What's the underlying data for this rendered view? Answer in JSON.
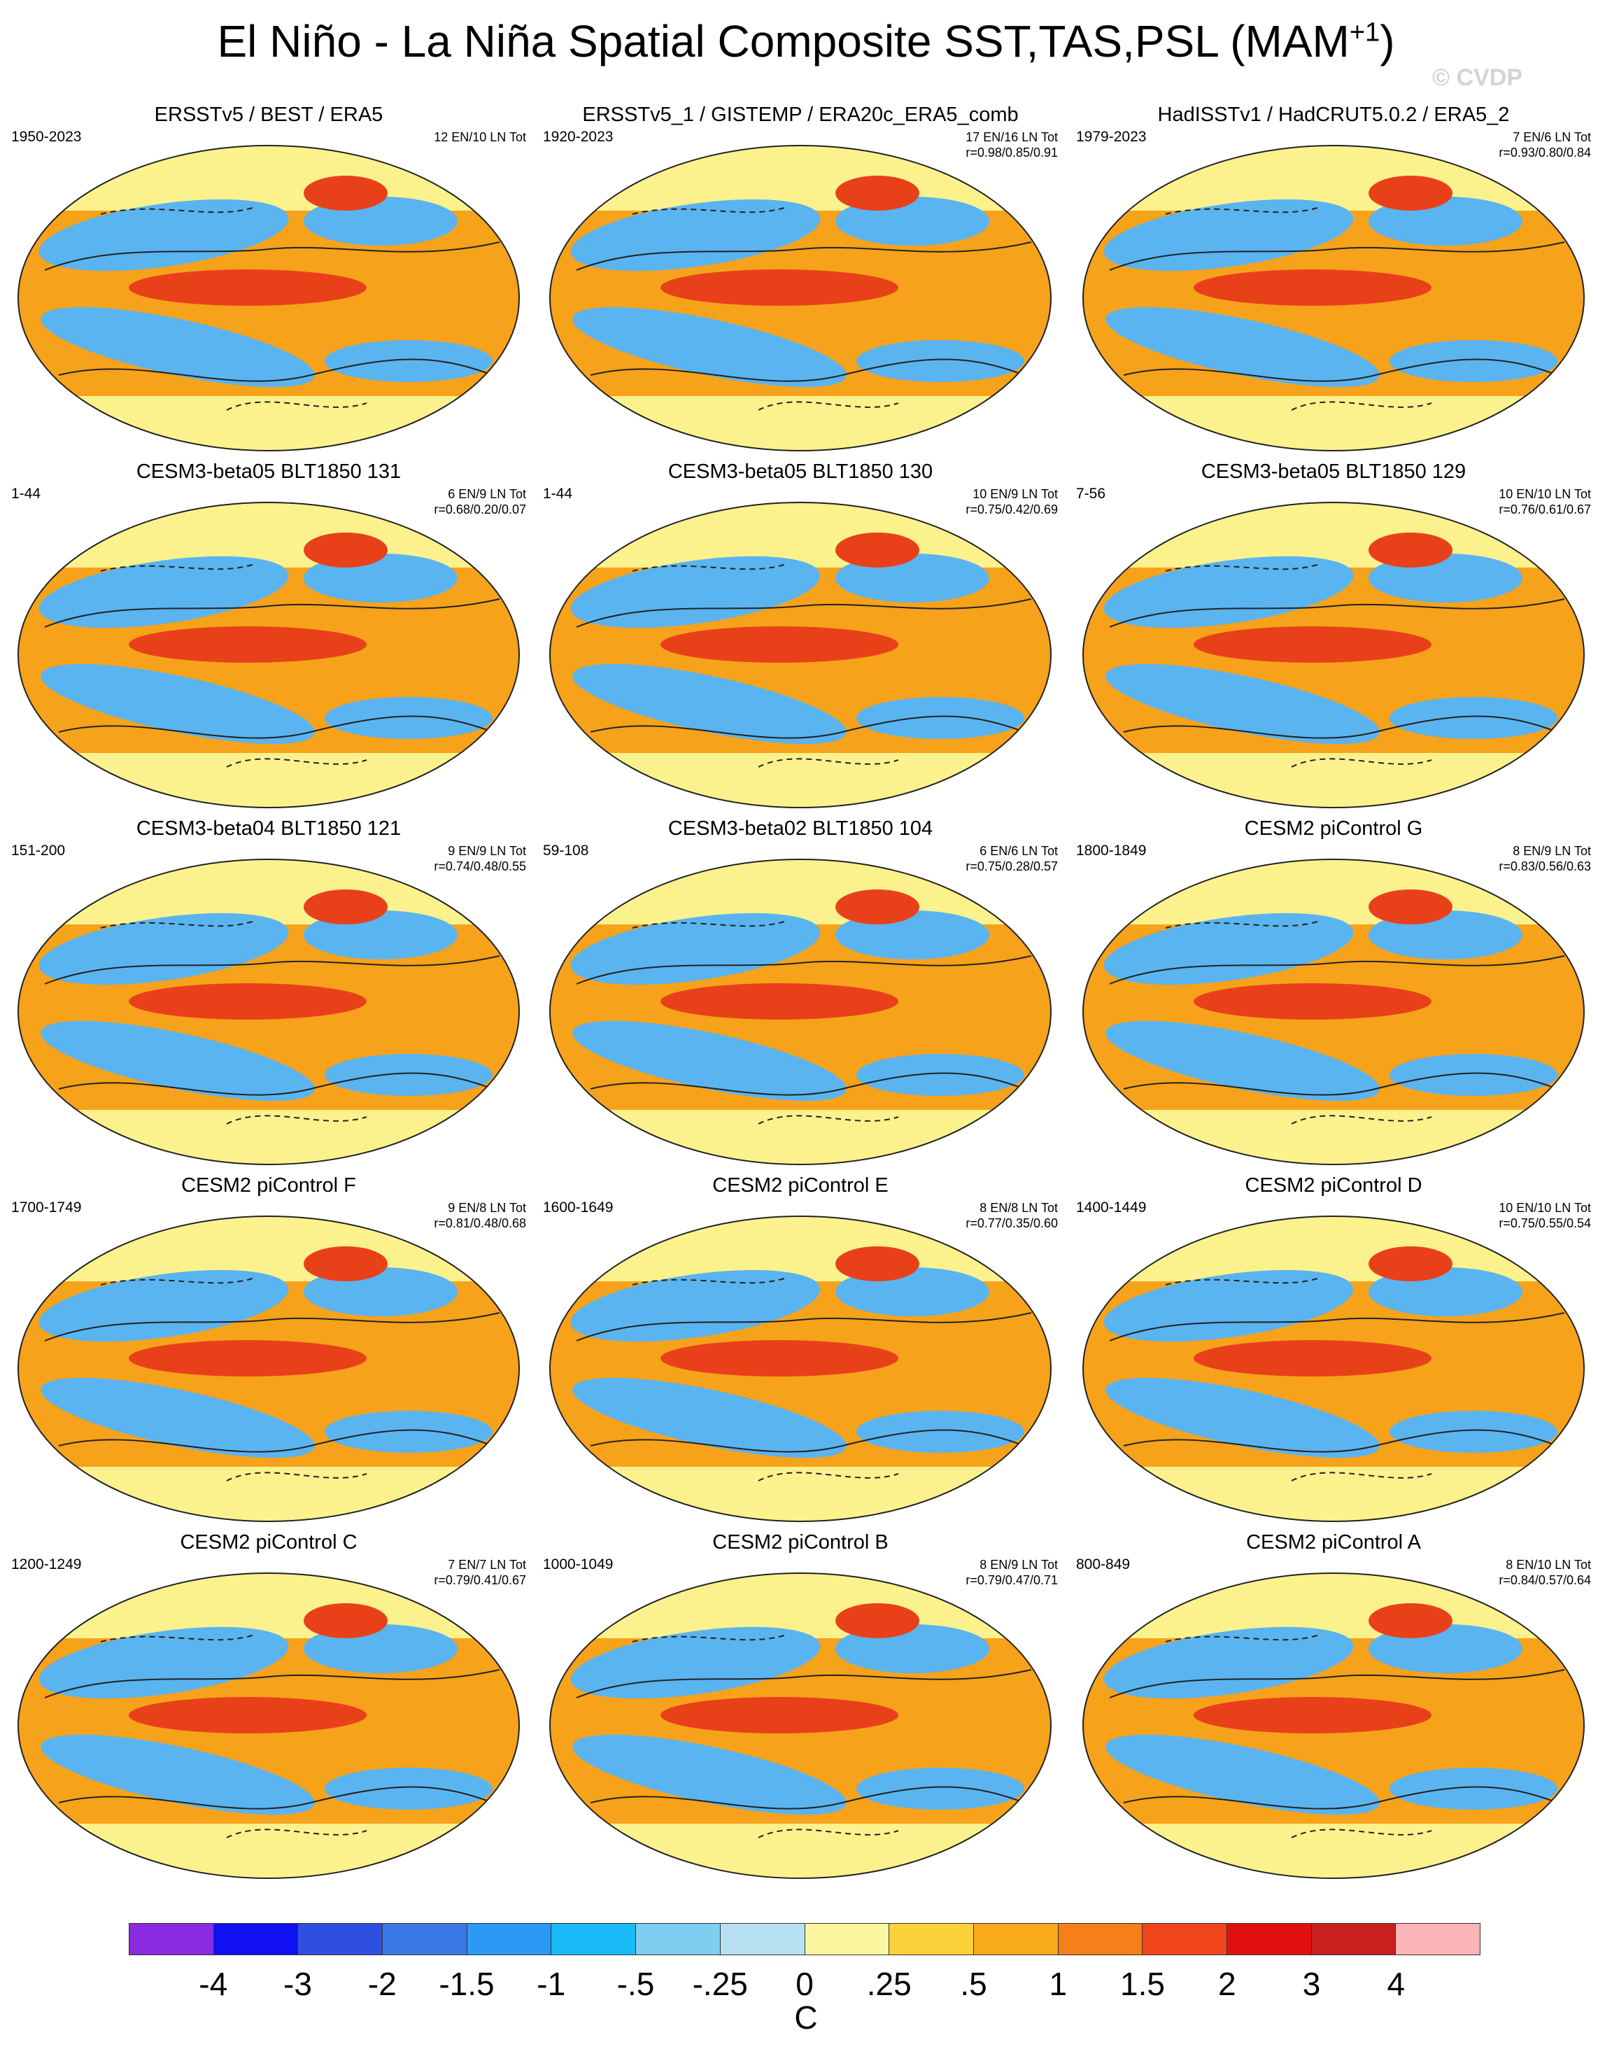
{
  "title": {
    "main": "El Niño - La Niña Spatial Composite SST,TAS,PSL (MAM",
    "sup": "+1",
    "close": ")"
  },
  "watermark": "© CVDP",
  "map_style": {
    "ocean_warm": "#f7a21b",
    "warm_strong": "#e8411a",
    "cool": "#5ab4f0",
    "neutral": "#fbf28e",
    "outline": "#222222"
  },
  "panels": [
    {
      "title": "ERSSTv5 / BEST / ERA5",
      "years": "1950-2023",
      "counts": "12 EN/10 LN Tot",
      "corr": ""
    },
    {
      "title": "ERSSTv5_1 / GISTEMP / ERA20c_ERA5_comb",
      "years": "1920-2023",
      "counts": "17 EN/16 LN Tot",
      "corr": "r=0.98/0.85/0.91"
    },
    {
      "title": "HadISSTv1 / HadCRUT5.0.2 / ERA5_2",
      "years": "1979-2023",
      "counts": "7 EN/6 LN Tot",
      "corr": "r=0.93/0.80/0.84"
    },
    {
      "title": "CESM3-beta05 BLT1850 131",
      "years": "1-44",
      "counts": "6 EN/9 LN Tot",
      "corr": "r=0.68/0.20/0.07"
    },
    {
      "title": "CESM3-beta05 BLT1850 130",
      "years": "1-44",
      "counts": "10 EN/9 LN Tot",
      "corr": "r=0.75/0.42/0.69"
    },
    {
      "title": "CESM3-beta05 BLT1850 129",
      "years": "7-56",
      "counts": "10 EN/10 LN Tot",
      "corr": "r=0.76/0.61/0.67"
    },
    {
      "title": "CESM3-beta04 BLT1850 121",
      "years": "151-200",
      "counts": "9 EN/9 LN Tot",
      "corr": "r=0.74/0.48/0.55"
    },
    {
      "title": "CESM3-beta02 BLT1850 104",
      "years": "59-108",
      "counts": "6 EN/6 LN Tot",
      "corr": "r=0.75/0.28/0.57"
    },
    {
      "title": "CESM2 piControl G",
      "years": "1800-1849",
      "counts": "8 EN/9 LN Tot",
      "corr": "r=0.83/0.56/0.63"
    },
    {
      "title": "CESM2 piControl F",
      "years": "1700-1749",
      "counts": "9 EN/8 LN Tot",
      "corr": "r=0.81/0.48/0.68"
    },
    {
      "title": "CESM2 piControl E",
      "years": "1600-1649",
      "counts": "8 EN/8 LN Tot",
      "corr": "r=0.77/0.35/0.60"
    },
    {
      "title": "CESM2 piControl D",
      "years": "1400-1449",
      "counts": "10 EN/10 LN Tot",
      "corr": "r=0.75/0.55/0.54"
    },
    {
      "title": "CESM2 piControl C",
      "years": "1200-1249",
      "counts": "7 EN/7 LN Tot",
      "corr": "r=0.79/0.41/0.67"
    },
    {
      "title": "CESM2 piControl B",
      "years": "1000-1049",
      "counts": "8 EN/9 LN Tot",
      "corr": "r=0.79/0.47/0.71"
    },
    {
      "title": "CESM2 piControl A",
      "years": "800-849",
      "counts": "8 EN/10 LN Tot",
      "corr": "r=0.84/0.57/0.64"
    }
  ],
  "colorbar": {
    "colors": [
      "#8a2be2",
      "#1010f0",
      "#2f4fe0",
      "#3a78e8",
      "#2a9af5",
      "#17baf5",
      "#7fcdf0",
      "#b7e0f2",
      "#fdf6a0",
      "#fcd23a",
      "#f9aa1a",
      "#f77f1a",
      "#f0451b",
      "#e0100f",
      "#c81f1f",
      "#fbb4b8"
    ],
    "labels": [
      "-4",
      "-3",
      "-2",
      "-1.5",
      "-1",
      "-.5",
      "-.25",
      "0",
      ".25",
      ".5",
      "1",
      "1.5",
      "2",
      "3",
      "4"
    ],
    "unit": "C"
  }
}
